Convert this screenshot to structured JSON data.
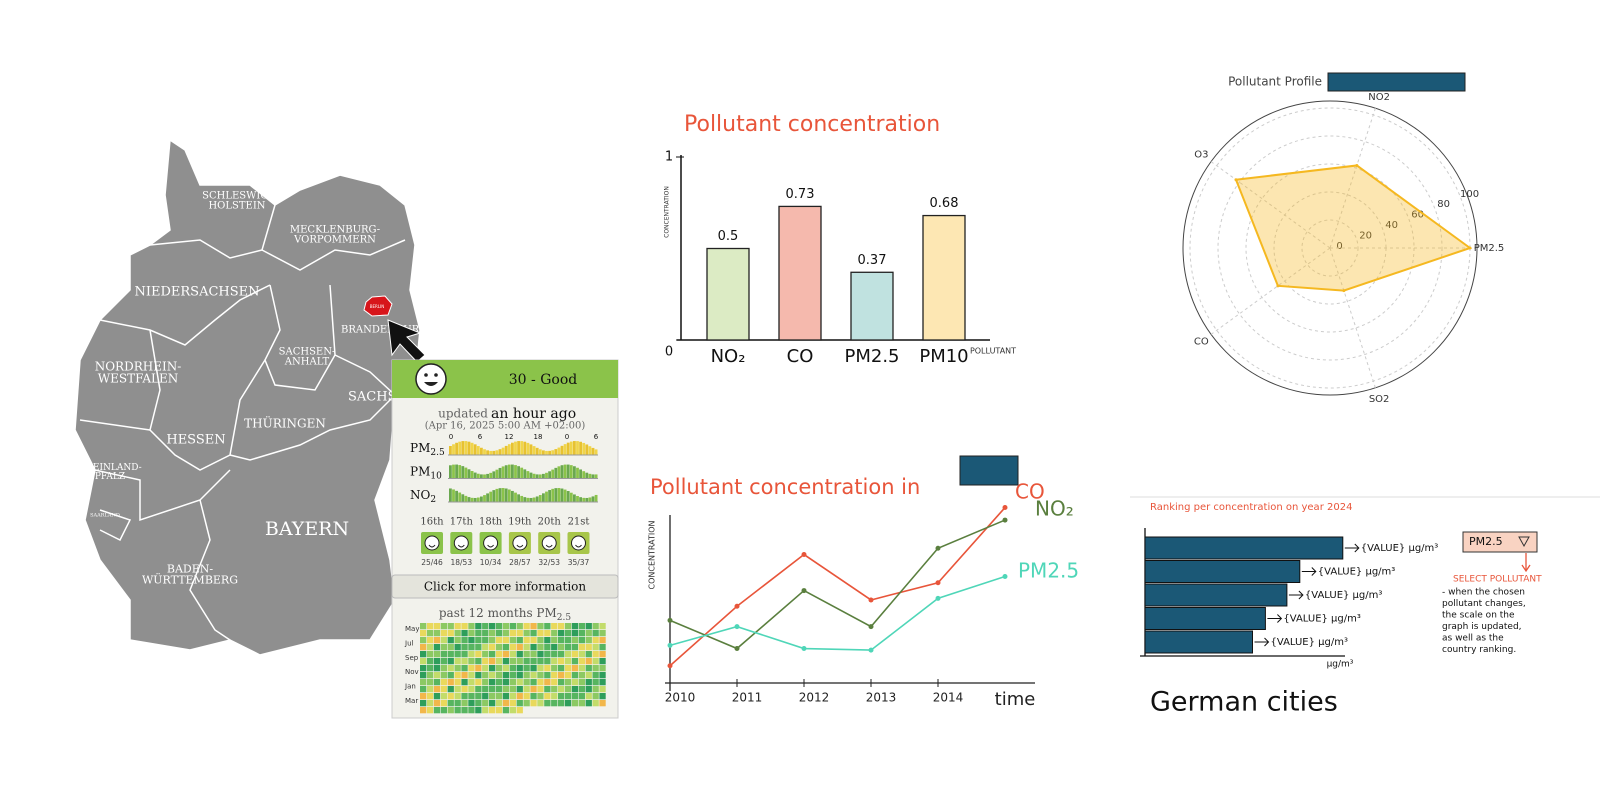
{
  "map": {
    "regions": [
      {
        "lines": [
          "SCHLESWIG-",
          "HOLSTEIN"
        ]
      },
      {
        "lines": [
          "MECKLENBURG-",
          "VORPOMMERN"
        ]
      },
      {
        "lines": [
          "NIEDERSACHSEN"
        ]
      },
      {
        "lines": [
          "BRANDENBURG"
        ]
      },
      {
        "lines": [
          "NORDRHEIN-",
          "WESTFALEN"
        ]
      },
      {
        "lines": [
          "SACHSEN-",
          "ANHALT"
        ]
      },
      {
        "lines": [
          "SACHSEN"
        ]
      },
      {
        "lines": [
          "HESSEN"
        ]
      },
      {
        "lines": [
          "THÜRINGEN"
        ]
      },
      {
        "lines": [
          "RHEINLAND-",
          "PFALZ"
        ]
      },
      {
        "lines": [
          "SAARLAND"
        ]
      },
      {
        "lines": [
          "BAYERN"
        ]
      },
      {
        "lines": [
          "BADEN-",
          "WÜRTTEMBERG"
        ]
      }
    ],
    "berlin": "BERLIN"
  },
  "aqi_card": {
    "index_text": "30 - Good",
    "updated": "updated",
    "updated_when": "an hour ago",
    "timestamp": "(Apr 16, 2025 5:00 AM +02:00)",
    "pollutants": [
      {
        "name": "PM",
        "sub": "2.5"
      },
      {
        "name": "PM",
        "sub": "10"
      },
      {
        "name": "NO",
        "sub": "2"
      }
    ],
    "hours": [
      "0",
      "6",
      "12",
      "18",
      "0",
      "6"
    ],
    "forecast": [
      {
        "day": "16th",
        "range": "25/46"
      },
      {
        "day": "17th",
        "range": "18/53"
      },
      {
        "day": "18th",
        "range": "10/34"
      },
      {
        "day": "19th",
        "range": "28/57"
      },
      {
        "day": "20th",
        "range": "32/53"
      },
      {
        "day": "21st",
        "range": "35/37"
      }
    ],
    "button": "Click for more information",
    "history_title": "past 12 months PM",
    "history_sub": "2.5",
    "months": [
      "May",
      "Jul",
      "Sep",
      "Nov",
      "Jan",
      "Mar"
    ]
  },
  "chart_data": [
    {
      "type": "bar",
      "title": "Pollutant concentration",
      "y_label": "CONCENTRATION",
      "x_label": "POLLUTANT",
      "categories": [
        "NO₂",
        "CO",
        "PM2.5",
        "PM10"
      ],
      "values": [
        0.5,
        0.73,
        0.37,
        0.68
      ],
      "colors": [
        "#dcebc4",
        "#f5b9ad",
        "#c0e2e0",
        "#fde7b3"
      ],
      "ylim": [
        0,
        1
      ],
      "yticks": [
        0,
        1
      ]
    },
    {
      "type": "radar",
      "title": "Pollutant Profile",
      "categories": [
        "PM2.5",
        "NO2",
        "O3",
        "CO",
        "SO2"
      ],
      "series": [
        {
          "values": [
            100,
            62,
            83,
            46,
            32
          ],
          "color": "#f5b820"
        }
      ],
      "rlim": [
        0,
        105
      ],
      "rticks": [
        0,
        20,
        40,
        60,
        80,
        100
      ]
    },
    {
      "type": "line",
      "title": "Pollutant concentration in",
      "y_label": "CONCENTRATION",
      "x_label": "time",
      "x": [
        2010,
        2011,
        2012,
        2013,
        2014,
        2015
      ],
      "series": [
        {
          "name": "CO",
          "color": "#e8553a",
          "values": [
            1.1,
            4.9,
            8.2,
            5.3,
            6.4,
            11.2
          ]
        },
        {
          "name": "NO₂",
          "color": "#5a7f3e",
          "values": [
            4.0,
            2.2,
            5.9,
            3.6,
            8.6,
            10.4
          ]
        },
        {
          "name": "PM2.5",
          "color": "#4fd6b8",
          "values": [
            2.4,
            3.6,
            2.2,
            2.1,
            5.4,
            6.8
          ]
        }
      ],
      "xlim": [
        2010,
        2015
      ],
      "xticks": [
        2010,
        2011,
        2012,
        2013,
        2014
      ],
      "ylim": [
        0,
        12
      ]
    },
    {
      "type": "hbar",
      "title": "Ranking per concentration on year 2024",
      "x_label": "µg/m³",
      "values": [
        92,
        72,
        66,
        56,
        50
      ],
      "value_labels": [
        "{VALUE} µg/m³",
        "{VALUE} µg/m³",
        "{VALUE} µg/m³",
        "{VALUE} µg/m³",
        "{VALUE} µg/m³"
      ],
      "color": "#1b5876",
      "xlim": [
        0,
        100
      ]
    }
  ],
  "ranking_panel": {
    "dropdown": "PM2.5",
    "note_title": "SELECT POLLUTANT",
    "note": [
      "- when the chosen",
      "pollutant changes,",
      "the scale on the",
      "graph is updated,",
      "as well as the",
      "country ranking."
    ],
    "caption": "German cities"
  }
}
